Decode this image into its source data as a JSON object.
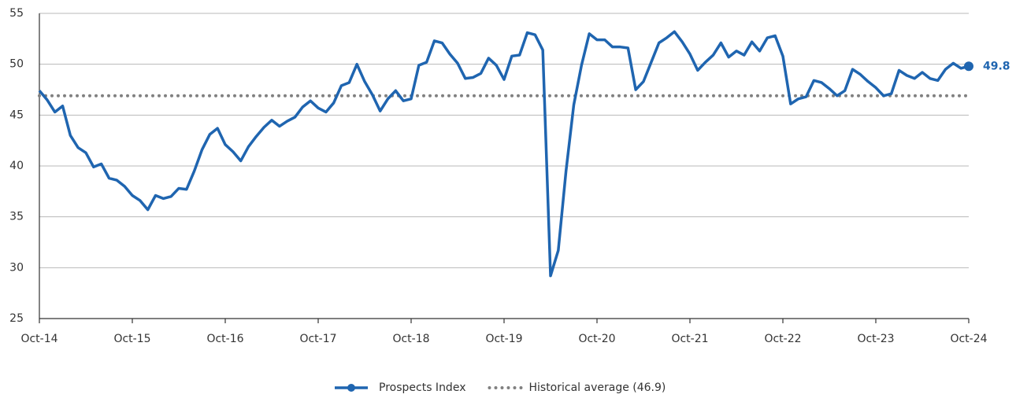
{
  "chart_data": {
    "type": "line",
    "categories": [
      "Oct-14",
      null,
      null,
      null,
      null,
      null,
      null,
      null,
      null,
      null,
      null,
      null,
      "Oct-15",
      null,
      null,
      null,
      null,
      null,
      null,
      null,
      null,
      null,
      null,
      null,
      "Oct-16",
      null,
      null,
      null,
      null,
      null,
      null,
      null,
      null,
      null,
      null,
      null,
      "Oct-17",
      null,
      null,
      null,
      null,
      null,
      null,
      null,
      null,
      null,
      null,
      null,
      "Oct-18",
      null,
      null,
      null,
      null,
      null,
      null,
      null,
      null,
      null,
      null,
      null,
      "Oct-19",
      null,
      null,
      null,
      null,
      null,
      null,
      null,
      null,
      null,
      null,
      null,
      "Oct-20",
      null,
      null,
      null,
      null,
      null,
      null,
      null,
      null,
      null,
      null,
      null,
      "Oct-21",
      null,
      null,
      null,
      null,
      null,
      null,
      null,
      null,
      null,
      null,
      null,
      "Oct-22",
      null,
      null,
      null,
      null,
      null,
      null,
      null,
      null,
      null,
      null,
      null,
      "Oct-23",
      null,
      null,
      null,
      null,
      null,
      null,
      null,
      null,
      null,
      null,
      null,
      "Oct-24"
    ],
    "series": [
      {
        "name": "Prospects Index",
        "color": "#1f65b0",
        "values": [
          47.4,
          46.5,
          45.3,
          45.9,
          43.0,
          41.8,
          41.3,
          39.9,
          40.2,
          38.8,
          38.6,
          38.0,
          37.1,
          36.6,
          35.7,
          37.1,
          36.8,
          37.0,
          37.8,
          37.7,
          39.5,
          41.6,
          43.1,
          43.7,
          42.1,
          41.4,
          40.5,
          41.9,
          42.9,
          43.8,
          44.5,
          43.9,
          44.4,
          44.8,
          45.8,
          46.4,
          45.7,
          45.3,
          46.2,
          47.9,
          48.2,
          50.0,
          48.3,
          47.0,
          45.4,
          46.6,
          47.4,
          46.4,
          46.6,
          49.9,
          50.2,
          52.3,
          52.1,
          51.0,
          50.1,
          48.6,
          48.7,
          49.1,
          50.6,
          49.9,
          48.5,
          50.8,
          50.9,
          53.1,
          52.9,
          51.4,
          29.2,
          31.7,
          39.5,
          46.0,
          49.9,
          53.0,
          52.4,
          52.4,
          51.7,
          51.7,
          51.6,
          47.5,
          48.3,
          50.2,
          52.1,
          52.6,
          53.2,
          52.2,
          51.0,
          49.4,
          50.2,
          50.9,
          52.1,
          50.7,
          51.3,
          50.9,
          52.2,
          51.3,
          52.6,
          52.8,
          50.8,
          46.1,
          46.6,
          46.8,
          48.4,
          48.2,
          47.6,
          46.9,
          47.4,
          49.5,
          49.0,
          48.3,
          47.7,
          46.9,
          47.1,
          49.4,
          48.9,
          48.6,
          49.2,
          48.6,
          48.4,
          49.5,
          50.1,
          49.6,
          49.8
        ]
      }
    ],
    "average": {
      "name": "Historical average (46.9)",
      "value": 46.9,
      "color": "#808080"
    },
    "ylim": [
      25,
      55
    ],
    "yticks": [
      25,
      30,
      35,
      40,
      45,
      50,
      55
    ],
    "grid": true,
    "legend": "bottom"
  }
}
